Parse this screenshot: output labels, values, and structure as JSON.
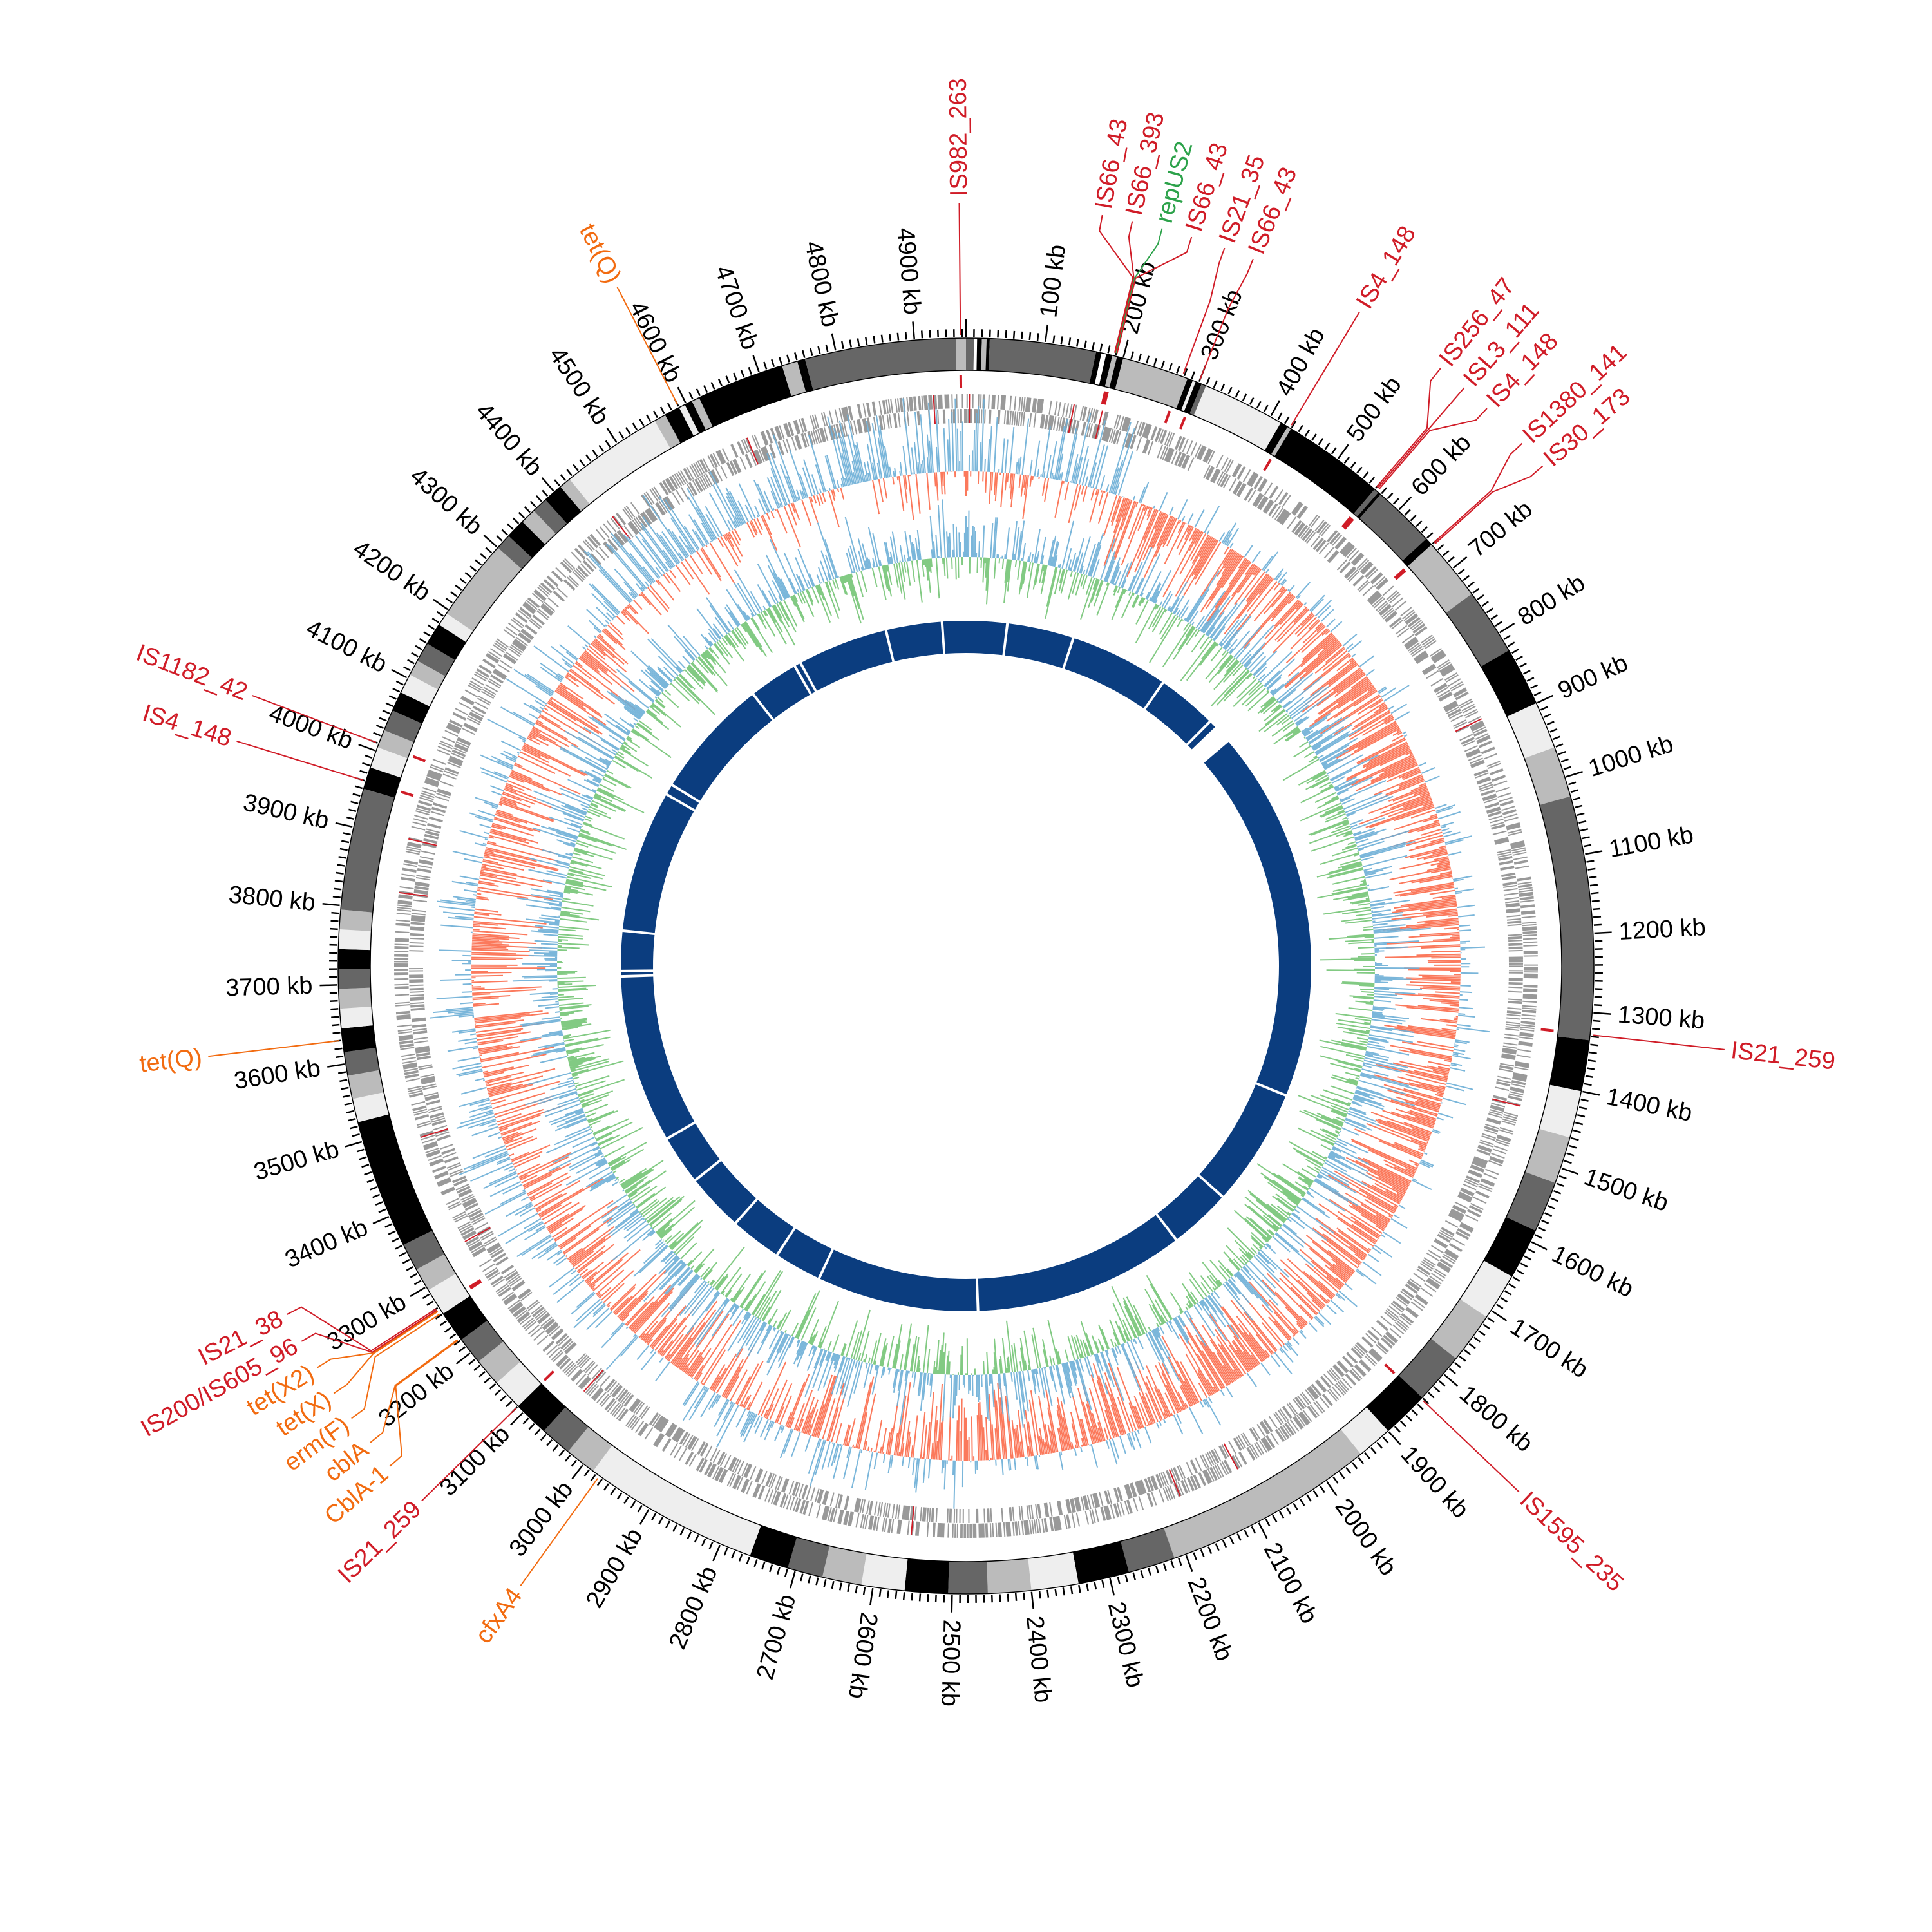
{
  "chart_data": {
    "type": "circos",
    "genome_length_kb": 4965,
    "tick_labels": [
      "100 kb",
      "200 kb",
      "300 kb",
      "400 kb",
      "500 kb",
      "600 kb",
      "700 kb",
      "800 kb",
      "900 kb",
      "1000 kb",
      "1100 kb",
      "1200 kb",
      "1300 kb",
      "1400 kb",
      "1500 kb",
      "1600 kb",
      "1700 kb",
      "1800 kb",
      "1900 kb",
      "2000 kb",
      "2100 kb",
      "2200 kb",
      "2300 kb",
      "2400 kb",
      "2500 kb",
      "2600 kb",
      "2700 kb",
      "2800 kb",
      "2900 kb",
      "3000 kb",
      "3100 kb",
      "3200 kb",
      "3300 kb",
      "3400 kb",
      "3500 kb",
      "3600 kb",
      "3700 kb",
      "3800 kb",
      "3900 kb",
      "4000 kb",
      "4100 kb",
      "4200 kb",
      "4300 kb",
      "4400 kb",
      "4500 kb",
      "4600 kb",
      "4700 kb",
      "4800 kb",
      "4900 kb"
    ],
    "major_tick_kb": 100,
    "minor_tick_kb": 10,
    "colors": {
      "insertion_sequence": "#d01c27",
      "resistance_gene": "#f26b10",
      "replicon": "#2ca24a",
      "gc_skew_pos": "#6baed6",
      "gc_skew_neg": "#fb6a4a",
      "gc_content_pos": "#6baed6",
      "gc_content_neg": "#74c476",
      "genes": "#999999",
      "contig_ring": "#0b3d7f"
    },
    "bands": [
      [
        0,
        10,
        "#666666"
      ],
      [
        10,
        14,
        "#ffffff"
      ],
      [
        14,
        20,
        "#000000"
      ],
      [
        20,
        26,
        "#bbbbbb"
      ],
      [
        26,
        30,
        "#000000"
      ],
      [
        30,
        165,
        "#666666"
      ],
      [
        165,
        172,
        "#000000"
      ],
      [
        172,
        178,
        "#ffffff"
      ],
      [
        178,
        186,
        "#000000"
      ],
      [
        186,
        192,
        "#bbbbbb"
      ],
      [
        192,
        200,
        "#000000"
      ],
      [
        200,
        285,
        "#bbbbbb"
      ],
      [
        285,
        292,
        "#000000"
      ],
      [
        292,
        296,
        "#eeeeee"
      ],
      [
        296,
        304,
        "#000000"
      ],
      [
        304,
        310,
        "#666666"
      ],
      [
        310,
        415,
        "#eeeeee"
      ],
      [
        415,
        425,
        "#000000"
      ],
      [
        425,
        430,
        "#bbbbbb"
      ],
      [
        430,
        560,
        "#000000"
      ],
      [
        560,
        566,
        "#666666"
      ],
      [
        566,
        570,
        "#000000"
      ],
      [
        570,
        650,
        "#666666"
      ],
      [
        650,
        660,
        "#000000"
      ],
      [
        660,
        740,
        "#bbbbbb"
      ],
      [
        740,
        825,
        "#666666"
      ],
      [
        825,
        900,
        "#000000"
      ],
      [
        900,
        960,
        "#eeeeee"
      ],
      [
        960,
        1025,
        "#bbbbbb"
      ],
      [
        1025,
        1335,
        "#666666"
      ],
      [
        1335,
        1400,
        "#000000"
      ],
      [
        1400,
        1460,
        "#eeeeee"
      ],
      [
        1460,
        1520,
        "#bbbbbb"
      ],
      [
        1520,
        1585,
        "#666666"
      ],
      [
        1585,
        1650,
        "#000000"
      ],
      [
        1650,
        1710,
        "#eeeeee"
      ],
      [
        1710,
        1775,
        "#bbbbbb"
      ],
      [
        1775,
        1840,
        "#666666"
      ],
      [
        1840,
        1900,
        "#000000"
      ],
      [
        1900,
        1945,
        "#eeeeee"
      ],
      [
        1945,
        2215,
        "#bbbbbb"
      ],
      [
        2215,
        2275,
        "#666666"
      ],
      [
        2275,
        2340,
        "#000000"
      ],
      [
        2340,
        2400,
        "#eeeeee"
      ],
      [
        2400,
        2455,
        "#bbbbbb"
      ],
      [
        2455,
        2505,
        "#666666"
      ],
      [
        2505,
        2560,
        "#000000"
      ],
      [
        2560,
        2615,
        "#eeeeee"
      ],
      [
        2615,
        2665,
        "#bbbbbb"
      ],
      [
        2665,
        2710,
        "#666666"
      ],
      [
        2710,
        2760,
        "#000000"
      ],
      [
        2760,
        2985,
        "#eeeeee"
      ],
      [
        2985,
        3025,
        "#bbbbbb"
      ],
      [
        3025,
        3065,
        "#666666"
      ],
      [
        3065,
        3110,
        "#000000"
      ],
      [
        3110,
        3150,
        "#eeeeee"
      ],
      [
        3150,
        3185,
        "#bbbbbb"
      ],
      [
        3185,
        3220,
        "#666666"
      ],
      [
        3220,
        3260,
        "#000000"
      ],
      [
        3260,
        3295,
        "#eeeeee"
      ],
      [
        3295,
        3325,
        "#bbbbbb"
      ],
      [
        3325,
        3360,
        "#666666"
      ],
      [
        3360,
        3525,
        "#000000"
      ],
      [
        3525,
        3555,
        "#eeeeee"
      ],
      [
        3555,
        3585,
        "#bbbbbb"
      ],
      [
        3585,
        3615,
        "#666666"
      ],
      [
        3615,
        3645,
        "#000000"
      ],
      [
        3645,
        3670,
        "#eeeeee"
      ],
      [
        3670,
        3695,
        "#bbbbbb"
      ],
      [
        3695,
        3720,
        "#666666"
      ],
      [
        3720,
        3745,
        "#000000"
      ],
      [
        3745,
        3770,
        "#eeeeee"
      ],
      [
        3770,
        3795,
        "#bbbbbb"
      ],
      [
        3795,
        3950,
        "#666666"
      ],
      [
        3950,
        3978,
        "#000000"
      ],
      [
        3978,
        4005,
        "#eeeeee"
      ],
      [
        4005,
        4028,
        "#bbbbbb"
      ],
      [
        4028,
        4055,
        "#666666"
      ],
      [
        4055,
        4080,
        "#000000"
      ],
      [
        4080,
        4105,
        "#eeeeee"
      ],
      [
        4105,
        4125,
        "#bbbbbb"
      ],
      [
        4125,
        4150,
        "#666666"
      ],
      [
        4150,
        4178,
        "#000000"
      ],
      [
        4178,
        4195,
        "#eeeeee"
      ],
      [
        4195,
        4300,
        "#bbbbbb"
      ],
      [
        4300,
        4320,
        "#666666"
      ],
      [
        4320,
        4345,
        "#000000"
      ],
      [
        4345,
        4365,
        "#bbbbbb"
      ],
      [
        4365,
        4385,
        "#666666"
      ],
      [
        4385,
        4410,
        "#000000"
      ],
      [
        4410,
        4425,
        "#bbbbbb"
      ],
      [
        4425,
        4555,
        "#eeeeee"
      ],
      [
        4555,
        4570,
        "#bbbbbb"
      ],
      [
        4570,
        4590,
        "#000000"
      ],
      [
        4590,
        4598,
        "#eeeeee"
      ],
      [
        4598,
        4608,
        "#000000"
      ],
      [
        4608,
        4618,
        "#bbbbbb"
      ],
      [
        4618,
        4730,
        "#000000"
      ],
      [
        4730,
        4750,
        "#bbbbbb"
      ],
      [
        4750,
        4760,
        "#000000"
      ],
      [
        4760,
        4952,
        "#666666"
      ],
      [
        4952,
        4965,
        "#bbbbbb"
      ]
    ],
    "contig_ring_gaps_kb": [
      95,
      250,
      480,
      620,
      640,
      660,
      680,
      1545,
      1820,
      1965,
      2455,
      2830,
      2940,
      3060,
      3195,
      3310,
      3700,
      3712,
      3805,
      4135,
      4160,
      4440,
      4555,
      4570,
      4780,
      4910
    ],
    "annotations": [
      {
        "label": "IS982_263",
        "kb": 4958,
        "type": "insertion_sequence"
      },
      {
        "label": "repUS2",
        "kb": 190,
        "type": "replicon"
      },
      {
        "label": "IS66_43",
        "kb": 188,
        "type": "insertion_sequence"
      },
      {
        "label": "IS66_393",
        "kb": 189,
        "type": "insertion_sequence"
      },
      {
        "label": "IS66_43",
        "kb": 191,
        "type": "insertion_sequence"
      },
      {
        "label": "IS21_35",
        "kb": 278,
        "type": "insertion_sequence"
      },
      {
        "label": "IS66_43",
        "kb": 300,
        "type": "insertion_sequence"
      },
      {
        "label": "IS4_148",
        "kb": 428,
        "type": "insertion_sequence"
      },
      {
        "label": "IS256_47",
        "kb": 560,
        "type": "insertion_sequence"
      },
      {
        "label": "ISL3_111",
        "kb": 562,
        "type": "insertion_sequence"
      },
      {
        "label": "IS4_148",
        "kb": 564,
        "type": "insertion_sequence"
      },
      {
        "label": "IS1380_141",
        "kb": 660,
        "type": "insertion_sequence"
      },
      {
        "label": "IS30_173",
        "kb": 662,
        "type": "insertion_sequence"
      },
      {
        "label": "IS21_259",
        "kb": 1328,
        "type": "insertion_sequence"
      },
      {
        "label": "IS1595_235",
        "kb": 1842,
        "type": "insertion_sequence"
      },
      {
        "label": "cfxA4",
        "kb": 2975,
        "type": "resistance_gene"
      },
      {
        "label": "IS21_259",
        "kb": 3110,
        "type": "insertion_sequence"
      },
      {
        "label": "CblA-1",
        "kb": 3222,
        "type": "resistance_gene"
      },
      {
        "label": "cblA",
        "kb": 3223,
        "type": "resistance_gene"
      },
      {
        "label": "erm(F)",
        "kb": 3262,
        "type": "resistance_gene"
      },
      {
        "label": "tet(X)",
        "kb": 3266,
        "type": "resistance_gene"
      },
      {
        "label": "tet(X2)",
        "kb": 3267,
        "type": "resistance_gene"
      },
      {
        "label": "IS200/IS605_96",
        "kb": 3268,
        "type": "insertion_sequence"
      },
      {
        "label": "IS21_38",
        "kb": 3270,
        "type": "insertion_sequence"
      },
      {
        "label": "tet(Q)",
        "kb": 3630,
        "type": "resistance_gene"
      },
      {
        "label": "IS4_148",
        "kb": 3960,
        "type": "insertion_sequence"
      },
      {
        "label": "IS1182_42",
        "kb": 4010,
        "type": "insertion_sequence"
      },
      {
        "label": "tet(Q)",
        "kb": 4590,
        "type": "resistance_gene"
      }
    ]
  }
}
